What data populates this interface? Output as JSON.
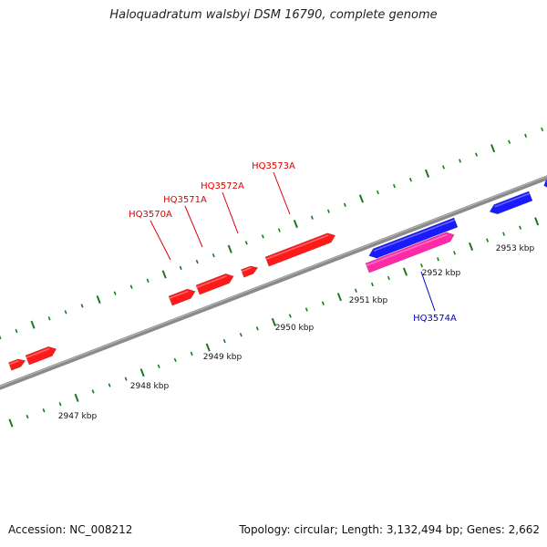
{
  "title": "Haloquadratum walsbyi DSM 16790, complete genome",
  "accession": "Accession: NC_008212",
  "summary": "Topology: circular; Length: 3,132,494 bp; Genes: 2,662",
  "colors": {
    "backbone": "#8a8a8a",
    "tick": "#1a7a1a",
    "forward_gene": "#ff1a1a",
    "reverse_gene": "#1a1aff",
    "highlight_gene": "#ff2aa8",
    "forward_label": "#dd0000",
    "reverse_label": "#0000cc"
  },
  "scale_labels": [
    "2947 kbp",
    "2948 kbp",
    "2949 kbp",
    "2950 kbp",
    "2951 kbp",
    "2952 kbp",
    "2953 kbp"
  ],
  "gene_labels": [
    {
      "name": "HQ3570A",
      "strand": "forward"
    },
    {
      "name": "HQ3571A",
      "strand": "forward"
    },
    {
      "name": "HQ3572A",
      "strand": "forward"
    },
    {
      "name": "HQ3573A",
      "strand": "forward"
    },
    {
      "name": "HQ3574A",
      "strand": "reverse"
    }
  ]
}
